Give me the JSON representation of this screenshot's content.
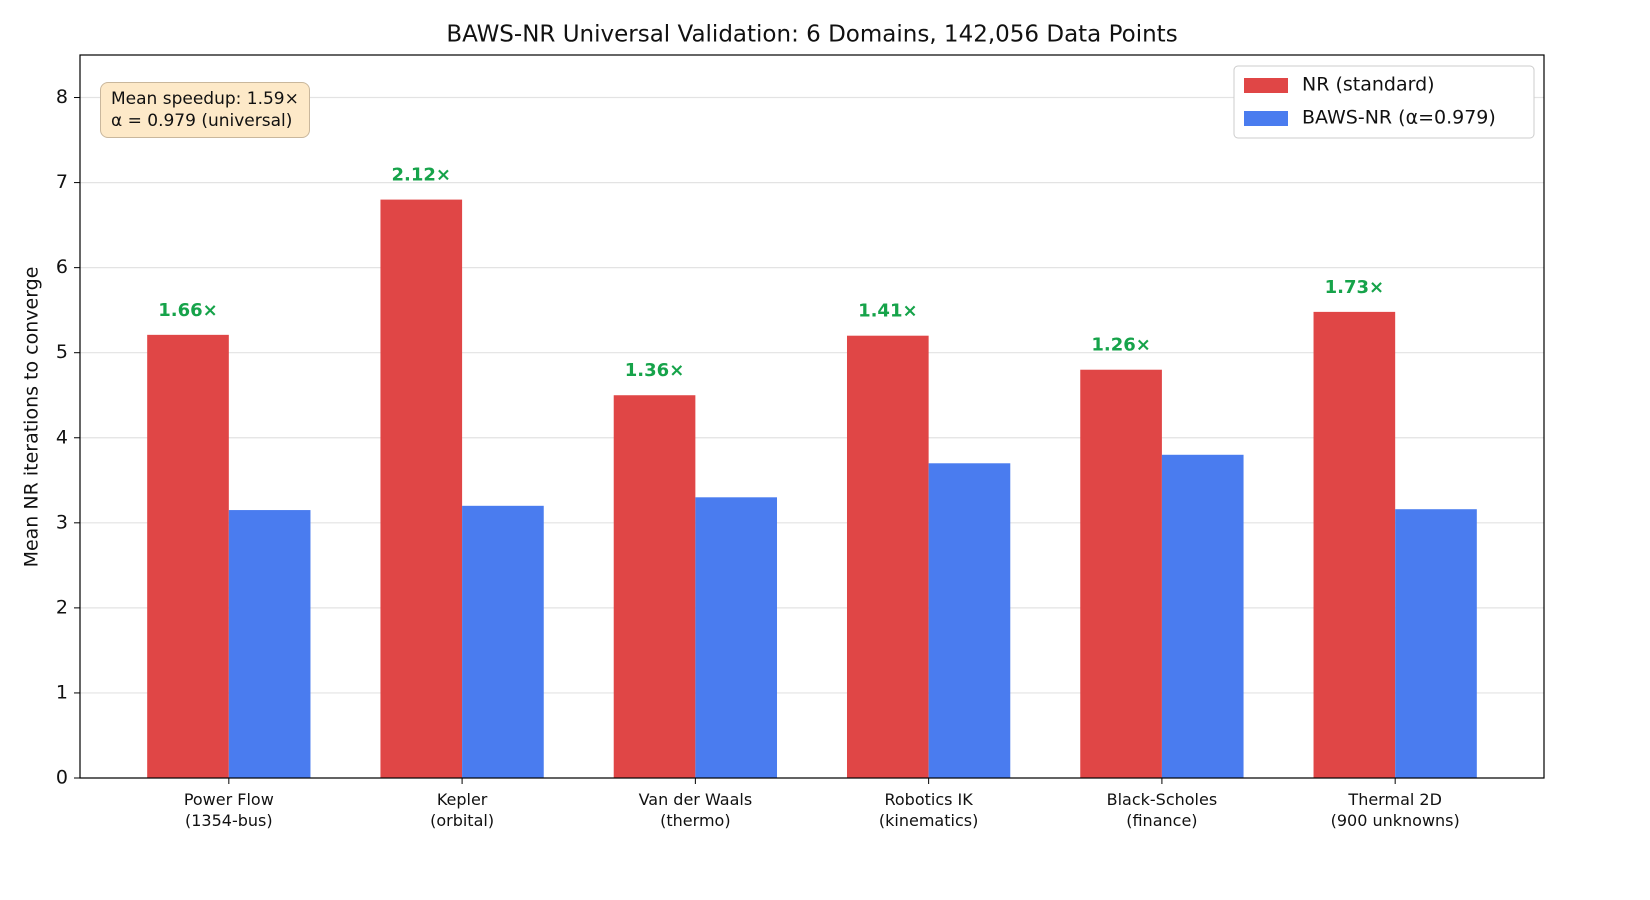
{
  "chart_data": {
    "type": "bar",
    "title": "BAWS-NR Universal Validation: 6 Domains, 142,056 Data Points",
    "y_label": "Mean NR iterations to converge",
    "categories": [
      "Power Flow\n(1354-bus)",
      "Kepler\n(orbital)",
      "Van der Waals\n(thermo)",
      "Robotics IK\n(kinematics)",
      "Black-Scholes\n(finance)",
      "Thermal 2D\n(900 unknowns)"
    ],
    "series": [
      {
        "name": "NR (standard)",
        "color": "#e04646",
        "values": [
          5.21,
          6.8,
          4.5,
          5.2,
          4.8,
          5.48
        ]
      },
      {
        "name": "BAWS-NR (α=0.979)",
        "color": "#4a7cef",
        "values": [
          3.15,
          3.2,
          3.3,
          3.7,
          3.8,
          3.16
        ]
      }
    ],
    "speedup_labels": [
      "1.66×",
      "2.12×",
      "1.36×",
      "1.41×",
      "1.26×",
      "1.73×"
    ],
    "speedup_color": "#16a34a",
    "annotation": "Mean speedup: 1.59×\nα = 0.979 (universal)",
    "ylim": [
      0,
      8.5
    ],
    "yticks": [
      0,
      1,
      2,
      3,
      4,
      5,
      6,
      7,
      8
    ],
    "grid": true,
    "legend": "upper right"
  }
}
